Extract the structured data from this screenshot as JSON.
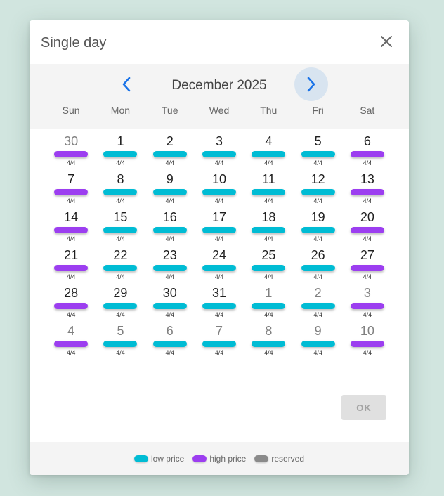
{
  "dialog": {
    "title": "Single day",
    "close_icon": "close-icon"
  },
  "calendar": {
    "month_label": "December 2025",
    "prev_icon": "chevron-left-icon",
    "next_icon": "chevron-right-icon",
    "weekdays": [
      "Sun",
      "Mon",
      "Tue",
      "Wed",
      "Thu",
      "Fri",
      "Sat"
    ],
    "days": [
      {
        "num": "30",
        "other": true,
        "price": "high",
        "avail": "4/4"
      },
      {
        "num": "1",
        "other": false,
        "price": "low",
        "avail": "4/4"
      },
      {
        "num": "2",
        "other": false,
        "price": "low",
        "avail": "4/4"
      },
      {
        "num": "3",
        "other": false,
        "price": "low",
        "avail": "4/4"
      },
      {
        "num": "4",
        "other": false,
        "price": "low",
        "avail": "4/4"
      },
      {
        "num": "5",
        "other": false,
        "price": "low",
        "avail": "4/4"
      },
      {
        "num": "6",
        "other": false,
        "price": "high",
        "avail": "4/4"
      },
      {
        "num": "7",
        "other": false,
        "price": "high",
        "avail": "4/4"
      },
      {
        "num": "8",
        "other": false,
        "price": "low",
        "avail": "4/4"
      },
      {
        "num": "9",
        "other": false,
        "price": "low",
        "avail": "4/4"
      },
      {
        "num": "10",
        "other": false,
        "price": "low",
        "avail": "4/4"
      },
      {
        "num": "11",
        "other": false,
        "price": "low",
        "avail": "4/4"
      },
      {
        "num": "12",
        "other": false,
        "price": "low",
        "avail": "4/4"
      },
      {
        "num": "13",
        "other": false,
        "price": "high",
        "avail": "4/4"
      },
      {
        "num": "14",
        "other": false,
        "price": "high",
        "avail": "4/4"
      },
      {
        "num": "15",
        "other": false,
        "price": "low",
        "avail": "4/4"
      },
      {
        "num": "16",
        "other": false,
        "price": "low",
        "avail": "4/4"
      },
      {
        "num": "17",
        "other": false,
        "price": "low",
        "avail": "4/4"
      },
      {
        "num": "18",
        "other": false,
        "price": "low",
        "avail": "4/4"
      },
      {
        "num": "19",
        "other": false,
        "price": "low",
        "avail": "4/4"
      },
      {
        "num": "20",
        "other": false,
        "price": "high",
        "avail": "4/4"
      },
      {
        "num": "21",
        "other": false,
        "price": "high",
        "avail": "4/4"
      },
      {
        "num": "22",
        "other": false,
        "price": "low",
        "avail": "4/4"
      },
      {
        "num": "23",
        "other": false,
        "price": "low",
        "avail": "4/4"
      },
      {
        "num": "24",
        "other": false,
        "price": "low",
        "avail": "4/4"
      },
      {
        "num": "25",
        "other": false,
        "price": "low",
        "avail": "4/4"
      },
      {
        "num": "26",
        "other": false,
        "price": "low",
        "avail": "4/4"
      },
      {
        "num": "27",
        "other": false,
        "price": "high",
        "avail": "4/4"
      },
      {
        "num": "28",
        "other": false,
        "price": "high",
        "avail": "4/4"
      },
      {
        "num": "29",
        "other": false,
        "price": "low",
        "avail": "4/4"
      },
      {
        "num": "30",
        "other": false,
        "price": "low",
        "avail": "4/4"
      },
      {
        "num": "31",
        "other": false,
        "price": "low",
        "avail": "4/4"
      },
      {
        "num": "1",
        "other": true,
        "price": "low",
        "avail": "4/4"
      },
      {
        "num": "2",
        "other": true,
        "price": "low",
        "avail": "4/4"
      },
      {
        "num": "3",
        "other": true,
        "price": "high",
        "avail": "4/4"
      },
      {
        "num": "4",
        "other": true,
        "price": "high",
        "avail": "4/4"
      },
      {
        "num": "5",
        "other": true,
        "price": "low",
        "avail": "4/4"
      },
      {
        "num": "6",
        "other": true,
        "price": "low",
        "avail": "4/4"
      },
      {
        "num": "7",
        "other": true,
        "price": "low",
        "avail": "4/4"
      },
      {
        "num": "8",
        "other": true,
        "price": "low",
        "avail": "4/4"
      },
      {
        "num": "9",
        "other": true,
        "price": "low",
        "avail": "4/4"
      },
      {
        "num": "10",
        "other": true,
        "price": "high",
        "avail": "4/4"
      }
    ]
  },
  "actions": {
    "ok_label": "OK"
  },
  "legend": [
    {
      "label": "low price",
      "color": "#00bcd4"
    },
    {
      "label": "high price",
      "color": "#9c3ef0"
    },
    {
      "label": "reserved",
      "color": "#8a8a8a"
    }
  ],
  "colors": {
    "low_price": "#00bcd4",
    "high_price": "#9c3ef0",
    "reserved": "#8a8a8a",
    "accent": "#1a73e8"
  }
}
